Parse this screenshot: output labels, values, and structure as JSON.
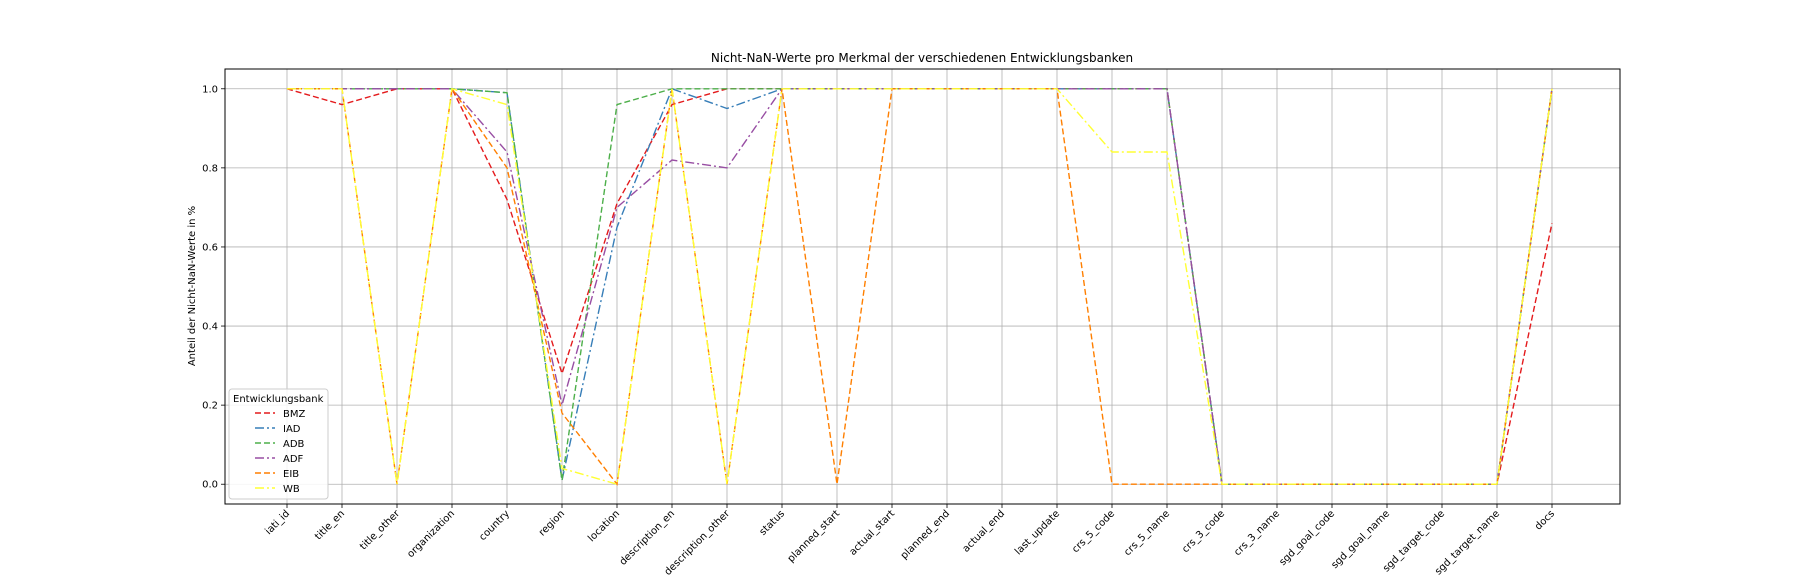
{
  "chart_data": {
    "type": "line",
    "title": "Nicht-NaN-Werte pro Merkmal der verschiedenen Entwicklungsbanken",
    "xlabel": "",
    "ylabel": "Anteil der Nicht-NaN-Werte in %",
    "ylim": [
      -0.05,
      1.05
    ],
    "yticks": [
      "0.0",
      "0.2",
      "0.4",
      "0.6",
      "0.8",
      "1.0"
    ],
    "grid": true,
    "legend": {
      "title": "Entwicklungsbank",
      "placement": "lower-left"
    },
    "categories": [
      "iati_id",
      "title_en",
      "title_other",
      "organization",
      "country",
      "region",
      "location",
      "description_en",
      "description_other",
      "status",
      "planned_start",
      "actual_start",
      "planned_end",
      "actual_end",
      "last_update",
      "crs_5_code",
      "crs_5_name",
      "crs_3_code",
      "crs_3_name",
      "sgd_goal_code",
      "sgd_goal_name",
      "sgd_target_code",
      "sgd_target_name",
      "docs"
    ],
    "series": [
      {
        "name": "BMZ",
        "color": "#e41a1c",
        "dash": "dashed",
        "values": [
          1.0,
          0.96,
          1.0,
          1.0,
          0.72,
          0.28,
          0.71,
          0.96,
          1.0,
          1.0,
          1.0,
          1.0,
          1.0,
          1.0,
          1.0,
          1.0,
          1.0,
          0.0,
          0.0,
          0.0,
          0.0,
          0.0,
          0.0,
          0.66
        ]
      },
      {
        "name": "IAD",
        "color": "#377eb8",
        "dash": "dashdot",
        "values": [
          1.0,
          1.0,
          1.0,
          1.0,
          0.99,
          0.01,
          0.65,
          1.0,
          0.95,
          1.0,
          1.0,
          1.0,
          1.0,
          1.0,
          1.0,
          1.0,
          1.0,
          0.0,
          0.0,
          0.0,
          0.0,
          0.0,
          0.0,
          1.0
        ]
      },
      {
        "name": "ADB",
        "color": "#4daf4a",
        "dash": "dashed",
        "values": [
          1.0,
          1.0,
          1.0,
          1.0,
          0.99,
          0.01,
          0.96,
          1.0,
          1.0,
          1.0,
          1.0,
          1.0,
          1.0,
          1.0,
          1.0,
          1.0,
          1.0,
          0.0,
          0.0,
          0.0,
          0.0,
          0.0,
          0.0,
          1.0
        ]
      },
      {
        "name": "ADF",
        "color": "#984ea3",
        "dash": "dashdot",
        "values": [
          1.0,
          1.0,
          1.0,
          1.0,
          0.84,
          0.2,
          0.7,
          0.82,
          0.8,
          1.0,
          1.0,
          1.0,
          1.0,
          1.0,
          1.0,
          1.0,
          1.0,
          0.0,
          0.0,
          0.0,
          0.0,
          0.0,
          0.0,
          1.0
        ]
      },
      {
        "name": "EIB",
        "color": "#ff7f00",
        "dash": "dashed",
        "values": [
          1.0,
          1.0,
          0.0,
          1.0,
          0.8,
          0.18,
          0.0,
          1.0,
          0.0,
          1.0,
          0.0,
          1.0,
          1.0,
          1.0,
          1.0,
          0.0,
          0.0,
          0.0,
          0.0,
          0.0,
          0.0,
          0.0,
          0.0,
          1.0
        ]
      },
      {
        "name": "WB",
        "color": "#ffff33",
        "dash": "dashdot",
        "values": [
          1.0,
          1.0,
          0.0,
          1.0,
          0.96,
          0.04,
          0.0,
          1.0,
          0.0,
          1.0,
          1.0,
          1.0,
          1.0,
          1.0,
          1.0,
          0.84,
          0.84,
          0.0,
          0.0,
          0.0,
          0.0,
          0.0,
          0.0,
          1.0
        ]
      }
    ]
  }
}
